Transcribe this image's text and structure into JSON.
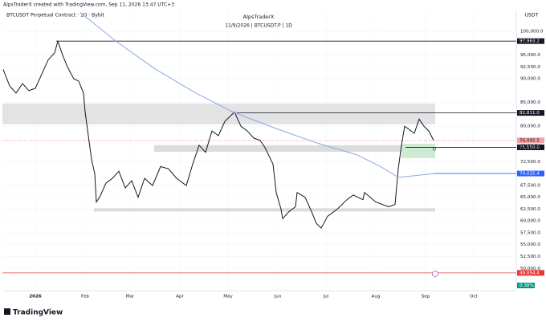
{
  "chart_data": {
    "type": "line",
    "header": "AlpsTraderX created with TradingView.com, Sep 11, 2026 13:47 UTC+3",
    "symbol_label": "BTCUSDT Perpetual Contract · 1D · Bybit",
    "title": "AlpsTraderX",
    "subtitle": "11/9/2026 | BTCUSDT.P | 1D",
    "unit": "USDT",
    "brand": "TradingView",
    "xlim": [
      -20.5,
      299.5
    ],
    "xticks": [
      {
        "value": 0,
        "label": "2026"
      },
      {
        "value": 31,
        "label": "Feb"
      },
      {
        "value": 59,
        "label": "Mar"
      },
      {
        "value": 90,
        "label": "Apr"
      },
      {
        "value": 120,
        "label": "May"
      },
      {
        "value": 151,
        "label": "Jun"
      },
      {
        "value": 181,
        "label": "Jul"
      },
      {
        "value": 212,
        "label": "Aug"
      },
      {
        "value": 243,
        "label": "Sep"
      },
      {
        "value": 273,
        "label": "Oct"
      }
    ],
    "ylim": [
      45300,
      104600
    ],
    "yticks": [
      {
        "value": 100000,
        "label": "100,000.0"
      },
      {
        "value": 95000,
        "label": "95,000.0"
      },
      {
        "value": 92500,
        "label": "92,500.0"
      },
      {
        "value": 90000,
        "label": "90,000.0"
      },
      {
        "value": 85000,
        "label": "85,000.0"
      },
      {
        "value": 80000,
        "label": "80,000.0"
      },
      {
        "value": 72500,
        "label": "72,500.0"
      },
      {
        "value": 67500,
        "label": "67,500.0"
      },
      {
        "value": 65000,
        "label": "65,000.0"
      },
      {
        "value": 62500,
        "label": "62,500.0"
      },
      {
        "value": 60000,
        "label": "60,000.0"
      },
      {
        "value": 57500,
        "label": "57,500.0"
      },
      {
        "value": 55000,
        "label": "55,000.0"
      },
      {
        "value": 52500,
        "label": "52,500.0"
      },
      {
        "value": 50000,
        "label": "50,000.0"
      }
    ],
    "grid": true,
    "series": [
      {
        "color": "#131722",
        "x": [
          -20,
          -16,
          -12,
          -8,
          -4,
          0,
          4,
          8,
          12,
          14,
          17,
          20,
          24,
          27,
          30,
          31,
          33,
          35,
          37,
          38,
          40,
          44,
          48,
          52,
          56,
          60,
          64,
          68,
          73,
          78,
          83,
          88,
          94,
          98,
          102,
          106,
          110,
          114,
          118,
          124,
          128,
          132,
          136,
          140,
          143,
          148,
          150,
          153,
          154,
          158,
          162,
          163,
          168,
          172,
          175,
          178,
          182,
          188,
          194,
          198,
          204,
          205,
          212,
          220,
          224,
          226,
          228,
          230,
          234,
          236,
          239,
          242,
          245,
          248
        ],
        "values": [
          92000,
          88500,
          87000,
          89000,
          87500,
          88000,
          91000,
          94000,
          95500,
          97900,
          95000,
          92500,
          90000,
          89500,
          87000,
          83000,
          78000,
          73000,
          70000,
          64000,
          65000,
          68000,
          69000,
          70500,
          67000,
          68500,
          65000,
          69000,
          67500,
          71500,
          71000,
          69000,
          67500,
          72000,
          76000,
          74500,
          79000,
          78000,
          81000,
          83000,
          80000,
          79000,
          77500,
          77000,
          75500,
          72000,
          66000,
          62500,
          60500,
          62000,
          63000,
          66000,
          65000,
          62000,
          59500,
          58500,
          61000,
          62500,
          64500,
          65500,
          64500,
          66000,
          64000,
          63000,
          63500,
          71000,
          76000,
          80000,
          79000,
          78500,
          81500,
          80000,
          79000,
          77000
        ]
      },
      {
        "color": "#8fa5e8",
        "x": [
          28,
          50,
          75,
          100,
          123,
          150,
          175,
          200,
          215,
          226,
          248
        ],
        "values": [
          104000,
          98000,
          92000,
          87000,
          83000,
          79500,
          76500,
          74000,
          71500,
          69200,
          70000
        ]
      }
    ],
    "zones": [
      {
        "x": [
          -20.5,
          249
        ],
        "y": [
          80400,
          84800
        ],
        "color": "#e3e3e3"
      },
      {
        "x": [
          74,
          249
        ],
        "y": [
          74600,
          76000
        ],
        "color": "#dcdcdc"
      },
      {
        "x": [
          36.5,
          249
        ],
        "y": [
          62000,
          62700
        ],
        "color": "#dcdcdc"
      },
      {
        "x": [
          228,
          249
        ],
        "y": [
          73250,
          76300
        ],
        "color": "#cdebd3"
      }
    ],
    "levels": [
      {
        "value": 97963.2,
        "label": "97,963.2",
        "from": 13,
        "color": "#131722",
        "text_color": "#ffffff"
      },
      {
        "value": 82811,
        "label": "82,811.0",
        "from": 125.5,
        "color": "#131722",
        "text_color": "#ffffff"
      },
      {
        "value": 76995.5,
        "label": "76,995.5",
        "from": -20.5,
        "color": "#f2a0a0",
        "text_color": "#131722"
      },
      {
        "value": 75550,
        "label": "75,550.0",
        "from": 230.5,
        "color": "#131722",
        "text_color": "#ffffff"
      },
      {
        "value": 70025.4,
        "label": "70,025.4",
        "from": 248,
        "color": "#2962ff",
        "text_color": "#ffffff"
      },
      {
        "value": 49054.4,
        "label": "49,054.4",
        "from": -20.5,
        "color": "#e53935",
        "text_color": "#ffffff"
      }
    ],
    "countdown": "19:12:34",
    "marker": "D",
    "badge": "0.38%"
  }
}
